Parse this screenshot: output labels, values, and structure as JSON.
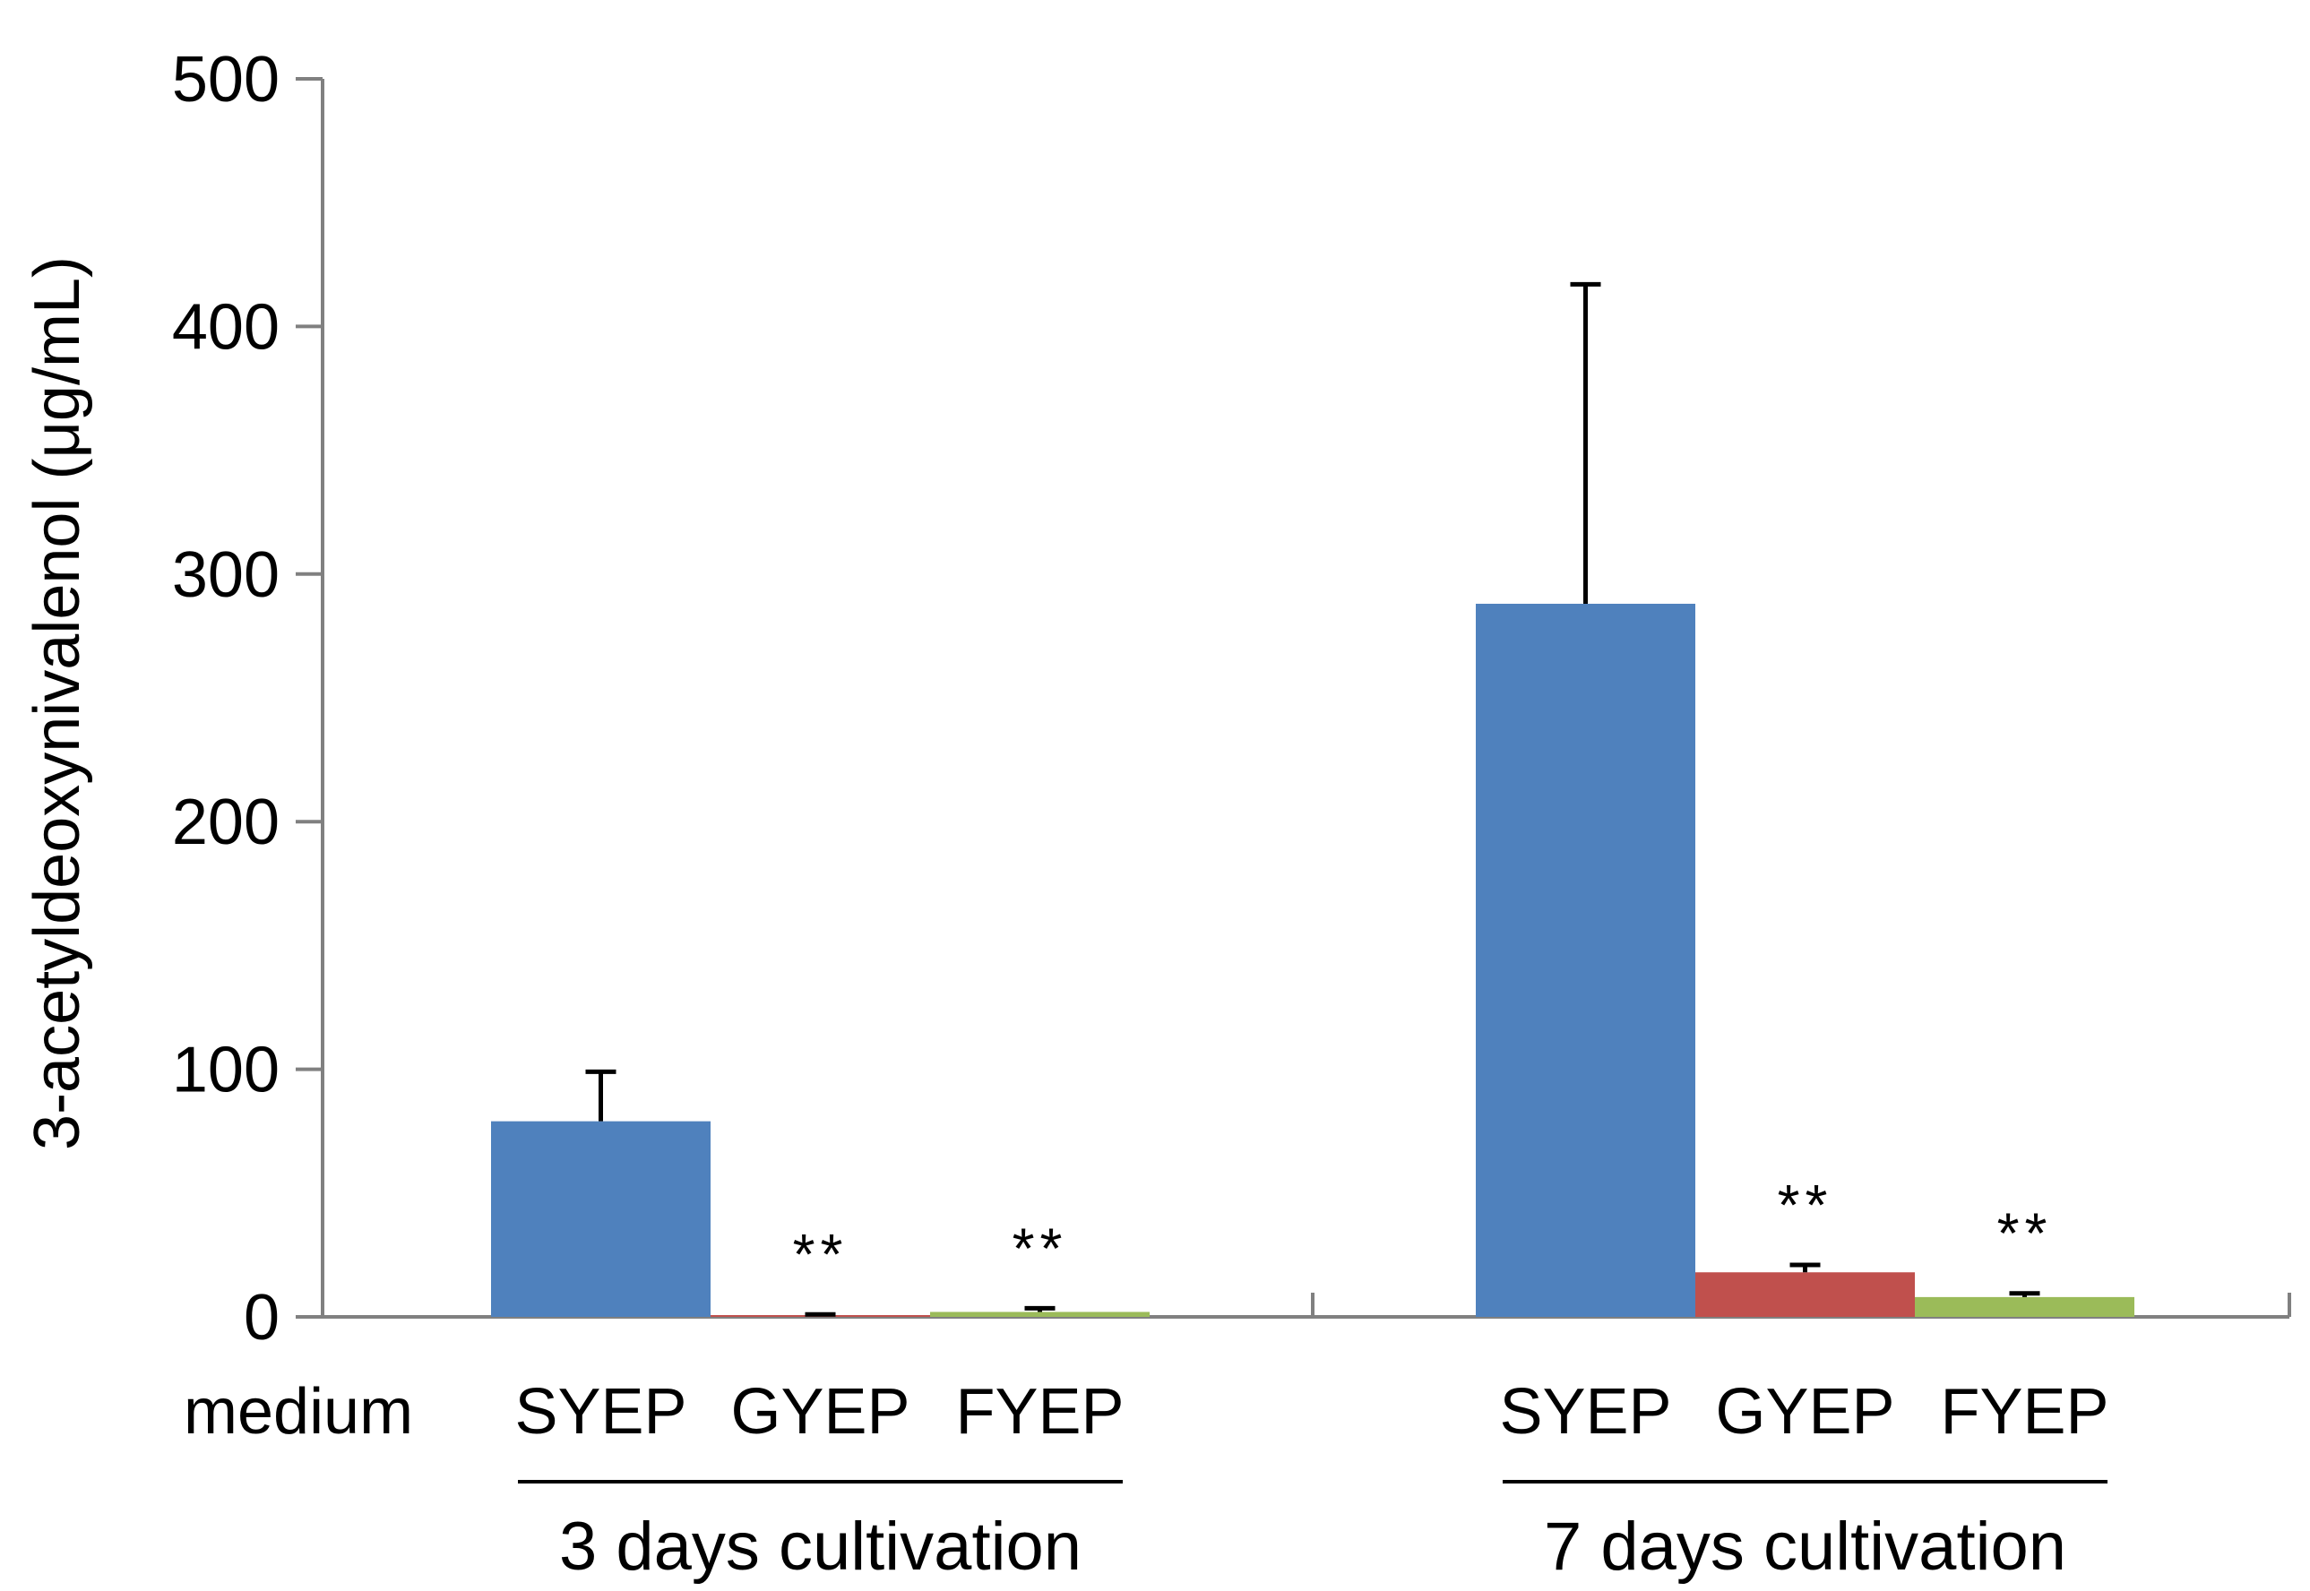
{
  "chart_data": {
    "type": "bar",
    "ylabel": "3-acetyldeoxynivalenol (μg/mL)",
    "ylim": [
      0,
      500
    ],
    "yticks": [
      0,
      100,
      200,
      300,
      400,
      500
    ],
    "ytick_labels": [
      "0",
      "100",
      "200",
      "300",
      "400",
      "500"
    ],
    "grid": false,
    "row_label": "medium",
    "groups": [
      {
        "name": "3 days cultivation",
        "bars": [
          {
            "category": "SYEP",
            "value": 79,
            "error": 20,
            "significance": ""
          },
          {
            "category": "GYEP",
            "value": 0.5,
            "error": 0.5,
            "significance": "**"
          },
          {
            "category": "FYEP",
            "value": 2,
            "error": 1.5,
            "significance": "**"
          }
        ]
      },
      {
        "name": "7 days cultivation",
        "bars": [
          {
            "category": "SYEP",
            "value": 288,
            "error": 129,
            "significance": ""
          },
          {
            "category": "GYEP",
            "value": 18,
            "error": 3,
            "significance": "**"
          },
          {
            "category": "FYEP",
            "value": 8,
            "error": 1.5,
            "significance": "**"
          }
        ]
      }
    ],
    "colors": {
      "SYEP": "#4f81bd",
      "GYEP": "#c0504d",
      "FYEP": "#9bbb59",
      "axis": "#808080",
      "error_bar": "#000000"
    }
  }
}
